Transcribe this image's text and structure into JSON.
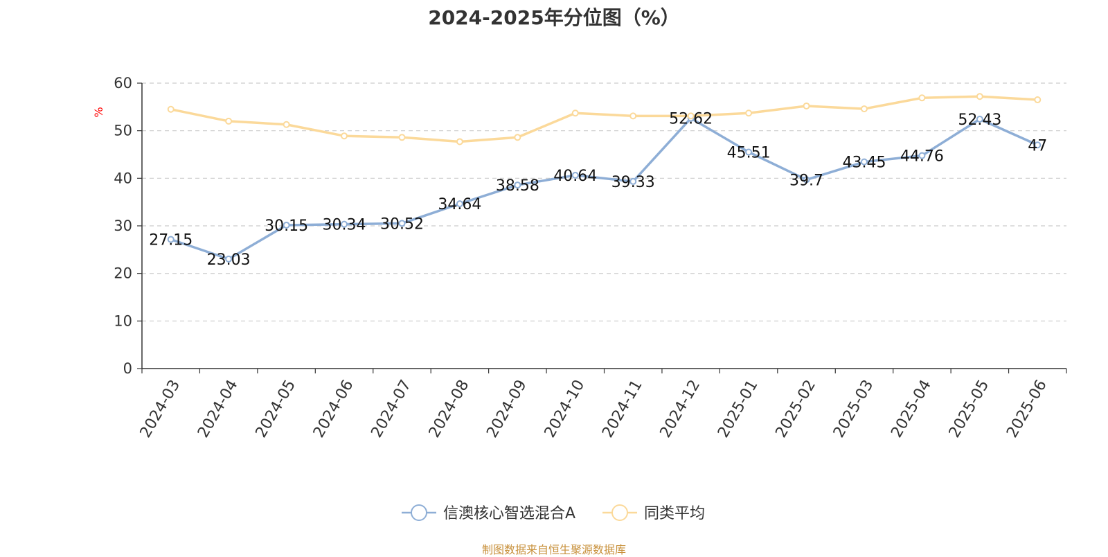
{
  "title": "2024-2025年分位图（%）",
  "footer": "制图数据来自恒生聚源数据库",
  "chart_data": {
    "type": "line",
    "title": "2024-2025年分位图（%）",
    "ylabel": "%",
    "xlabel": "",
    "ylim": [
      0,
      60
    ],
    "yticks": [
      0,
      10,
      20,
      30,
      40,
      50,
      60
    ],
    "grid": true,
    "legend_position": "bottom",
    "categories": [
      "2024-03",
      "2024-04",
      "2024-05",
      "2024-06",
      "2024-07",
      "2024-08",
      "2024-09",
      "2024-10",
      "2024-11",
      "2024-12",
      "2025-01",
      "2025-02",
      "2025-03",
      "2025-04",
      "2025-05",
      "2025-06"
    ],
    "series": [
      {
        "name": "信澳核心智选混合A",
        "color": "#8eaed6",
        "values": [
          27.15,
          23.03,
          30.15,
          30.34,
          30.52,
          34.64,
          38.58,
          40.64,
          39.33,
          52.62,
          45.51,
          39.7,
          43.45,
          44.76,
          52.43,
          47
        ],
        "labels": [
          "27.15",
          "23.03",
          "30.15",
          "30.34",
          "30.52",
          "34.64",
          "38.58",
          "40.64",
          "39.33",
          "52.62",
          "45.51",
          "39.7",
          "43.45",
          "44.76",
          "52.43",
          "47"
        ]
      },
      {
        "name": "同类平均",
        "color": "#fbd99a",
        "values": [
          54.5,
          52.0,
          51.3,
          48.9,
          48.6,
          47.7,
          48.6,
          53.7,
          53.1,
          53.1,
          53.7,
          55.2,
          54.6,
          56.9,
          57.2,
          56.5
        ]
      }
    ]
  }
}
